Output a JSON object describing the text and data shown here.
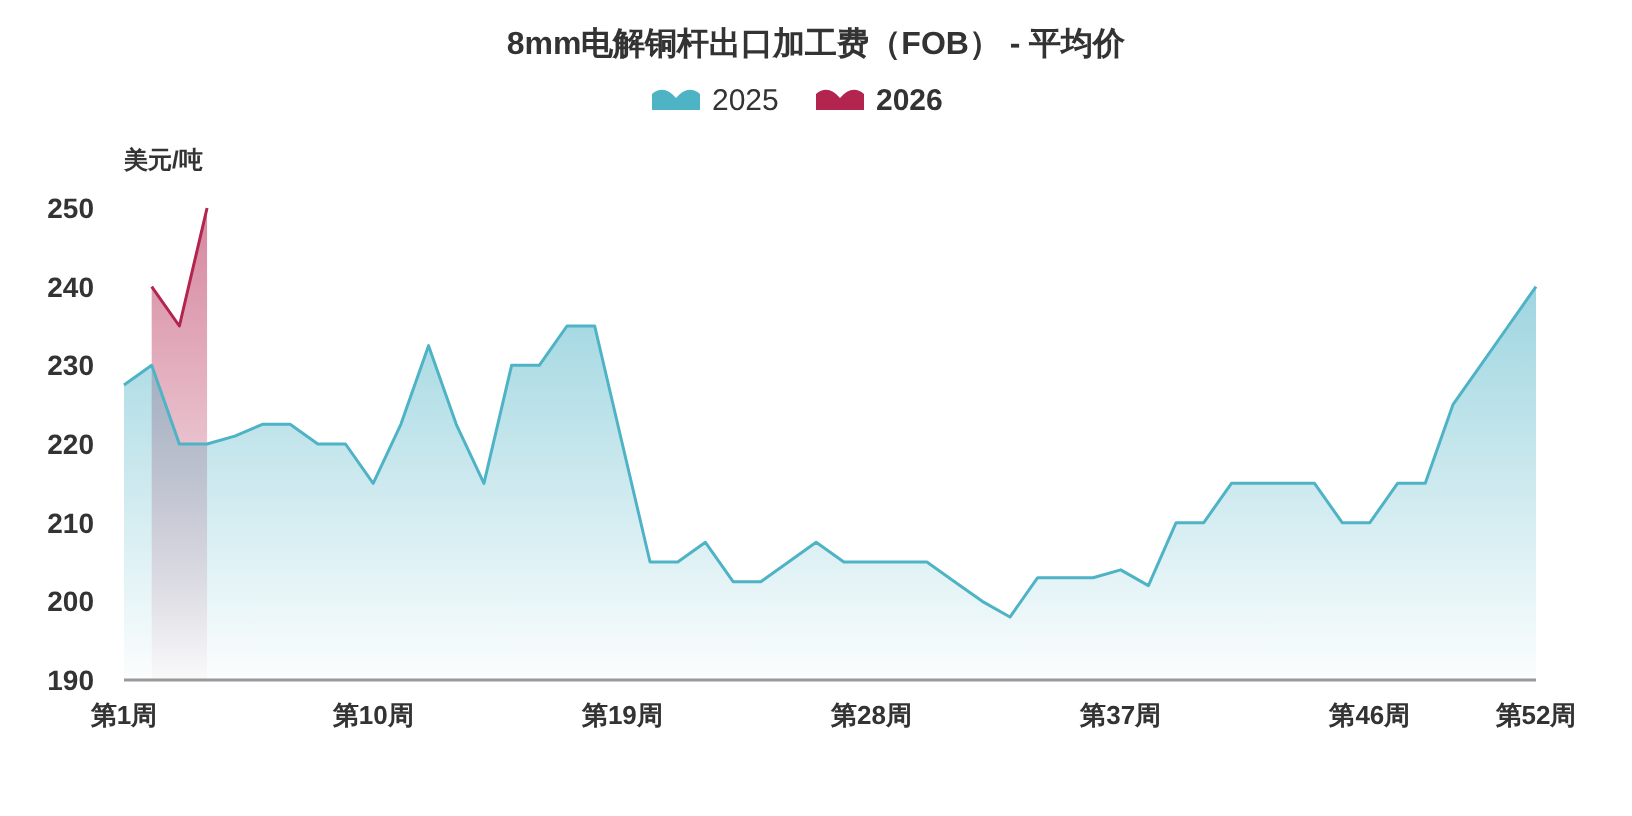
{
  "chart_data": {
    "type": "area",
    "title": "8mm电解铜杆出口加工费（FOB） - 平均价",
    "ylabel": "美元/吨",
    "legend": "top",
    "categories": [
      "第1周",
      null,
      null,
      null,
      null,
      null,
      null,
      null,
      null,
      "第10周",
      null,
      null,
      null,
      null,
      null,
      null,
      null,
      null,
      "第19周",
      null,
      null,
      null,
      null,
      null,
      null,
      null,
      null,
      "第28周",
      null,
      null,
      null,
      null,
      null,
      null,
      null,
      null,
      "第37周",
      null,
      null,
      null,
      null,
      null,
      null,
      null,
      null,
      "第46周",
      null,
      null,
      null,
      null,
      null,
      "第52周"
    ],
    "series": [
      {
        "name": "2025",
        "color": "#4fb3c6",
        "values": [
          227.5,
          230,
          220,
          220,
          221,
          222.5,
          222.5,
          220,
          220,
          215,
          222.5,
          232.5,
          222.5,
          215,
          230,
          230,
          235,
          235,
          220,
          205,
          205,
          207.5,
          202.5,
          202.5,
          205,
          207.5,
          205,
          205,
          205,
          205,
          202.5,
          200,
          198,
          203,
          203,
          203,
          204,
          202,
          210,
          210,
          215,
          215,
          215,
          215,
          210,
          210,
          215,
          215,
          225,
          230,
          235,
          240
        ]
      },
      {
        "name": "2026",
        "color": "#b3244f",
        "values": [
          null,
          240,
          235,
          250,
          null,
          null,
          null,
          null,
          null,
          null,
          null,
          null,
          null,
          null,
          null,
          null,
          null,
          null,
          null,
          null,
          null,
          null,
          null,
          null,
          null,
          null,
          null,
          null,
          null,
          null,
          null,
          null,
          null,
          null,
          null,
          null,
          null,
          null,
          null,
          null,
          null,
          null,
          null,
          null,
          null,
          null,
          null,
          null,
          null,
          null,
          null,
          null
        ]
      }
    ],
    "ylim": [
      190,
      250
    ],
    "yticks": [
      190,
      200,
      210,
      220,
      230,
      240,
      250
    ]
  }
}
